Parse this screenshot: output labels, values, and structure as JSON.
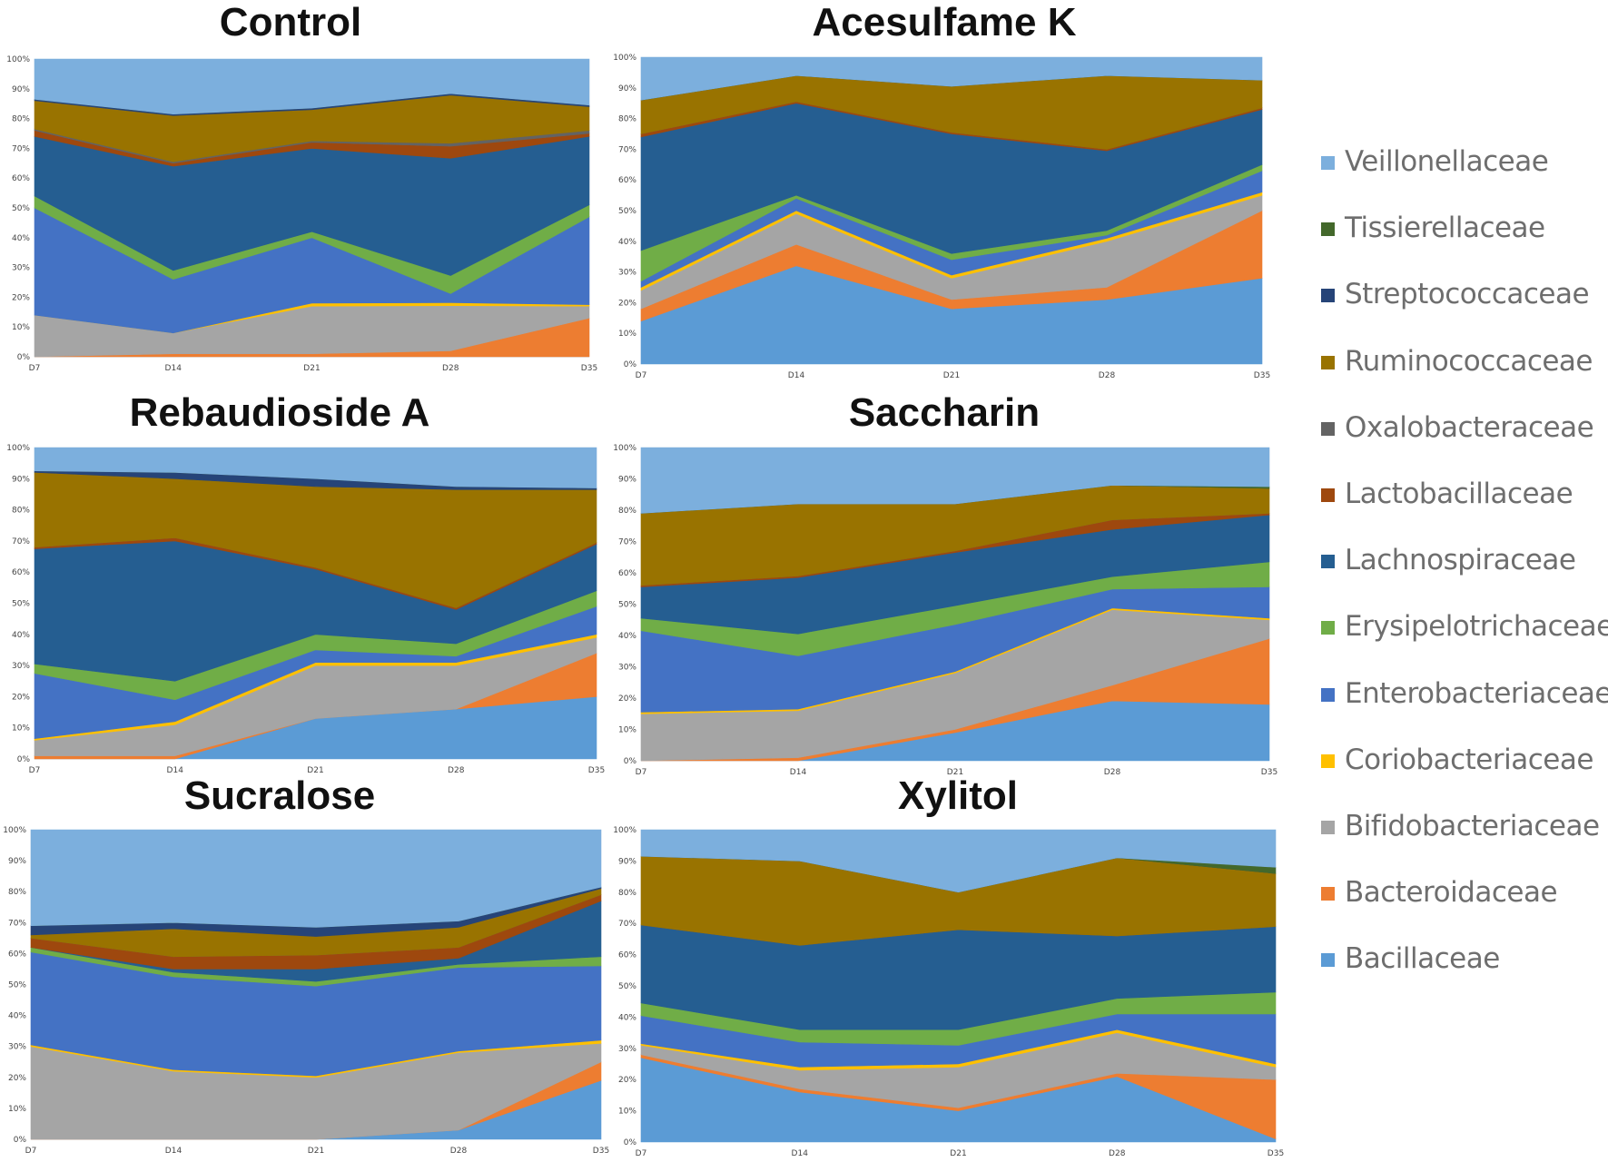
{
  "chart_data": {
    "type": "area",
    "stacked": true,
    "percent": true,
    "x": [
      "D7",
      "D14",
      "D21",
      "D28",
      "D35"
    ],
    "ylim": [
      0,
      100
    ],
    "yticks": [
      "0%",
      "10%",
      "20%",
      "30%",
      "40%",
      "50%",
      "60%",
      "70%",
      "80%",
      "90%",
      "100%"
    ],
    "legend_position": "right",
    "families": [
      {
        "name": "Bacillaceae",
        "color": "#5b9bd5"
      },
      {
        "name": "Bacteroidaceae",
        "color": "#ed7d31"
      },
      {
        "name": "Bifidobacteriaceae",
        "color": "#a5a5a5"
      },
      {
        "name": "Coriobacteriaceae",
        "color": "#ffc000"
      },
      {
        "name": "Enterobacteriaceae",
        "color": "#4472c4"
      },
      {
        "name": "Erysipelotrichaceae",
        "color": "#70ad47"
      },
      {
        "name": "Lachnospiraceae",
        "color": "#255e91"
      },
      {
        "name": "Lactobacillaceae",
        "color": "#9e480e"
      },
      {
        "name": "Oxalobacteraceae",
        "color": "#636363"
      },
      {
        "name": "Ruminococcaceae",
        "color": "#997300"
      },
      {
        "name": "Streptococcaceae",
        "color": "#264478"
      },
      {
        "name": "Tissierellaceae",
        "color": "#43682b"
      },
      {
        "name": "Veillonellaceae",
        "color": "#7cafdd"
      }
    ],
    "charts": [
      {
        "title": "Control",
        "series": [
          [
            0,
            0,
            0,
            0,
            0
          ],
          [
            0,
            1,
            1,
            2,
            13
          ],
          [
            14,
            7,
            16,
            15,
            4
          ],
          [
            0,
            0,
            1,
            1,
            0.5
          ],
          [
            36,
            18,
            22,
            3,
            29.5
          ],
          [
            4,
            3,
            2,
            6,
            4
          ],
          [
            20,
            35,
            28,
            39,
            23
          ],
          [
            2,
            1,
            2,
            4,
            1
          ],
          [
            0.5,
            0.5,
            0.5,
            1,
            1
          ],
          [
            9.5,
            15.5,
            10.5,
            16,
            8
          ],
          [
            0.5,
            0.5,
            0.5,
            0.5,
            0.5
          ],
          [
            0,
            0,
            0,
            0,
            0
          ],
          [
            13.5,
            18.5,
            16.5,
            11.5,
            15.5
          ]
        ]
      },
      {
        "title": "Acesulfame K",
        "series": [
          [
            14,
            32,
            18,
            21,
            28
          ],
          [
            4,
            7,
            3,
            4,
            22
          ],
          [
            6,
            10,
            7,
            15,
            5
          ],
          [
            1,
            1,
            1,
            1,
            1
          ],
          [
            2,
            4,
            5,
            1,
            7
          ],
          [
            10,
            1,
            2,
            1.5,
            2
          ],
          [
            37,
            30,
            39,
            26,
            18
          ],
          [
            1,
            0.5,
            0.5,
            0.5,
            0.5
          ],
          [
            0,
            0,
            0,
            0,
            0
          ],
          [
            11,
            8.5,
            15,
            24,
            9
          ],
          [
            0,
            0,
            0,
            0,
            0
          ],
          [
            0,
            0,
            0,
            0,
            0
          ],
          [
            14,
            6,
            9.5,
            6,
            7.5
          ]
        ]
      },
      {
        "title": "Rebaudioside A",
        "series": [
          [
            0,
            0,
            13,
            16,
            20
          ],
          [
            1,
            1,
            0,
            0,
            14
          ],
          [
            5,
            10,
            17,
            14,
            5
          ],
          [
            0.5,
            1,
            1,
            1,
            1
          ],
          [
            21,
            7,
            4,
            2,
            9
          ],
          [
            3,
            6,
            5,
            4,
            5
          ],
          [
            37,
            45,
            21,
            11,
            15
          ],
          [
            0.5,
            1,
            0.5,
            0.5,
            0.5
          ],
          [
            0,
            0,
            0,
            0,
            0
          ],
          [
            24,
            19,
            26,
            38,
            17
          ],
          [
            0.5,
            2,
            2.5,
            1,
            0.5
          ],
          [
            0,
            0,
            0,
            0,
            0
          ],
          [
            7.5,
            8,
            10,
            12.5,
            13
          ]
        ]
      },
      {
        "title": "Saccharin",
        "series": [
          [
            0,
            0,
            9,
            19,
            18
          ],
          [
            0,
            1,
            1,
            5,
            21
          ],
          [
            15,
            15,
            18,
            24,
            6
          ],
          [
            0.5,
            0.5,
            0.5,
            0.5,
            0.5
          ],
          [
            26,
            17,
            15,
            6,
            10
          ],
          [
            4,
            7,
            6,
            4,
            8
          ],
          [
            10,
            18,
            17,
            15,
            15
          ],
          [
            0.5,
            0.5,
            0.5,
            3,
            0.5
          ],
          [
            0,
            0,
            0,
            0,
            0
          ],
          [
            23,
            23,
            15,
            11,
            8
          ],
          [
            0,
            0,
            0,
            0,
            0
          ],
          [
            0,
            0,
            0,
            0,
            0.5
          ],
          [
            21,
            18,
            18,
            12,
            12.5
          ]
        ]
      },
      {
        "title": "Sucralose",
        "series": [
          [
            0,
            0,
            0,
            3,
            19
          ],
          [
            0,
            0,
            0,
            0,
            6
          ],
          [
            30,
            22,
            20,
            25,
            6
          ],
          [
            0.5,
            0.5,
            0.5,
            0.5,
            1
          ],
          [
            30,
            30,
            29,
            27,
            24
          ],
          [
            1.5,
            1.5,
            1.5,
            1,
            3
          ],
          [
            0,
            1,
            4,
            2,
            18
          ],
          [
            3,
            4,
            4.5,
            3.5,
            2
          ],
          [
            0,
            0,
            0,
            0,
            0
          ],
          [
            1,
            9,
            6,
            6.5,
            2
          ],
          [
            3,
            2,
            3,
            2,
            0.5
          ],
          [
            0,
            0,
            0,
            0,
            0
          ],
          [
            31,
            30,
            31.5,
            29.5,
            18.5
          ]
        ]
      },
      {
        "title": "Xylitol",
        "series": [
          [
            27,
            16,
            10,
            21,
            1
          ],
          [
            1,
            1,
            1,
            1,
            19
          ],
          [
            3,
            6,
            13,
            13,
            4
          ],
          [
            0.5,
            1,
            1,
            1,
            1
          ],
          [
            9,
            8,
            6,
            5,
            16
          ],
          [
            4,
            4,
            5,
            5,
            7
          ],
          [
            25,
            27,
            32,
            20,
            21
          ],
          [
            0,
            0,
            0,
            0,
            0
          ],
          [
            0,
            0,
            0,
            0,
            0
          ],
          [
            22,
            27,
            12,
            25,
            17
          ],
          [
            0,
            0,
            0,
            0,
            0
          ],
          [
            0,
            0,
            0,
            0,
            2
          ],
          [
            8.5,
            10,
            20,
            9,
            12
          ]
        ]
      }
    ]
  }
}
